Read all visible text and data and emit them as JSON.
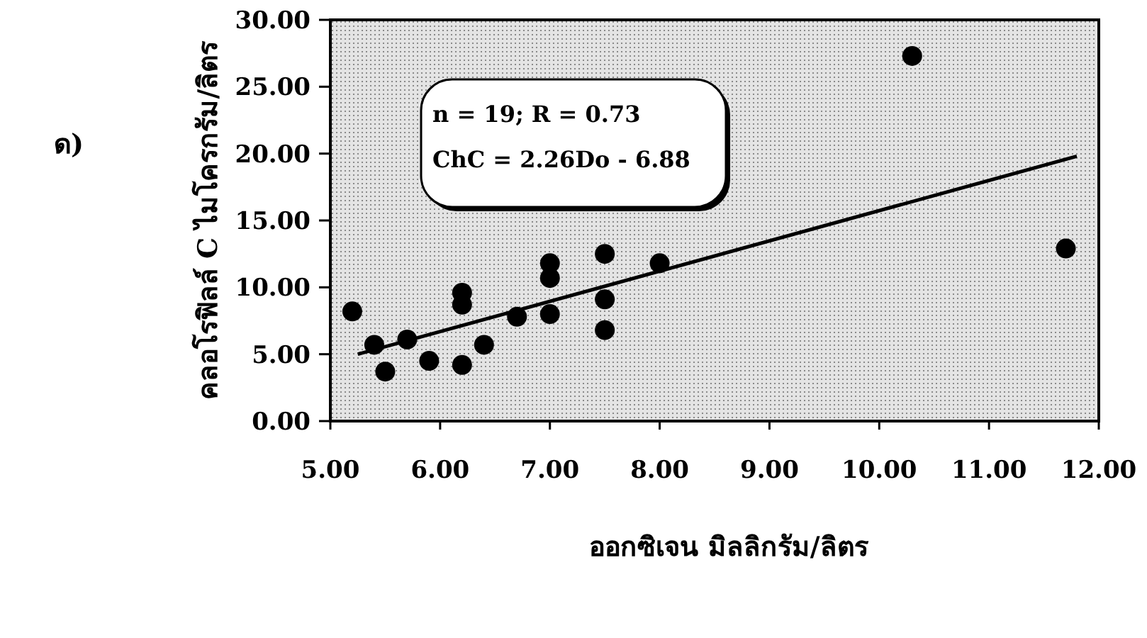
{
  "chart_data": {
    "type": "scatter",
    "xlabel": "ออกซิเจน  มิลลิกรัม/ลิตร",
    "ylabel": "คลอโรฟิลล์ C ไมโครกรัม/ลิตร",
    "annotations": [
      "ด)",
      "n = 19; R = 0.73",
      "ChC = 2.26Do - 6.88"
    ],
    "xlim": [
      5,
      12
    ],
    "xticks": [
      {
        "value": 5,
        "label": "5.00"
      },
      {
        "value": 6,
        "label": "6.00"
      },
      {
        "value": 7,
        "label": "7.00"
      },
      {
        "value": 8,
        "label": "8.00"
      },
      {
        "value": 9,
        "label": "9.00"
      },
      {
        "value": 10,
        "label": "10.00"
      },
      {
        "value": 11,
        "label": "11.00"
      },
      {
        "value": 12,
        "label": "12.00"
      }
    ],
    "ylim": [
      0,
      30
    ],
    "yticks": [
      {
        "value": 0,
        "label": "0.00"
      },
      {
        "value": 5,
        "label": "5.00"
      },
      {
        "value": 10,
        "label": "10.00"
      },
      {
        "value": 15,
        "label": "15.00"
      },
      {
        "value": 20,
        "label": "20.00"
      },
      {
        "value": 25,
        "label": "25.00"
      },
      {
        "value": 30,
        "label": "30.00"
      }
    ],
    "grid": false,
    "marker": "circle",
    "series": [
      {
        "color": "#000000",
        "x": [
          5.2,
          5.4,
          5.5,
          5.7,
          5.9,
          6.2,
          6.2,
          6.2,
          6.4,
          6.7,
          7.0,
          7.0,
          7.0,
          7.5,
          7.5,
          7.5,
          8.0,
          10.3,
          11.7
        ],
        "values": [
          8.2,
          5.7,
          3.7,
          6.1,
          4.5,
          9.6,
          8.7,
          4.2,
          5.7,
          7.8,
          11.8,
          10.7,
          8.0,
          12.5,
          9.1,
          6.8,
          11.8,
          27.3,
          12.9
        ]
      },
      {
        "type": "line",
        "color": "#000000",
        "x": [
          5.25,
          11.8
        ],
        "values": [
          5.0,
          19.8
        ],
        "line_style": "solid",
        "marker": "none"
      }
    ]
  }
}
